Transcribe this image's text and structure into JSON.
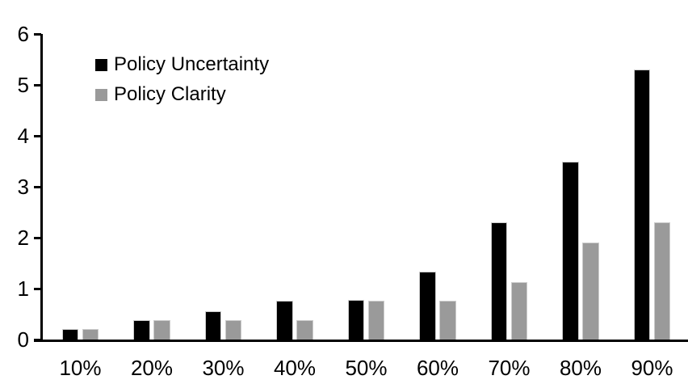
{
  "chart_data": {
    "type": "bar",
    "title": "",
    "xlabel": "",
    "ylabel": "",
    "categories": [
      "10%",
      "20%",
      "30%",
      "40%",
      "50%",
      "60%",
      "70%",
      "80%",
      "90%"
    ],
    "series": [
      {
        "name": "Policy Uncertainty",
        "color": "#000000",
        "values": [
          0.2,
          0.38,
          0.55,
          0.76,
          0.77,
          1.33,
          2.3,
          3.5,
          5.3
        ]
      },
      {
        "name": "Policy Clarity",
        "color": "#9a9a9a",
        "values": [
          0.2,
          0.38,
          0.38,
          0.38,
          0.76,
          0.76,
          1.13,
          1.9,
          2.3
        ]
      }
    ],
    "ylim": [
      0,
      6
    ],
    "yticks": [
      0,
      1,
      2,
      3,
      4,
      5,
      6
    ],
    "grid": false,
    "legend_position": "top-left",
    "axis_color": "#000000",
    "background_color": "#ffffff"
  }
}
